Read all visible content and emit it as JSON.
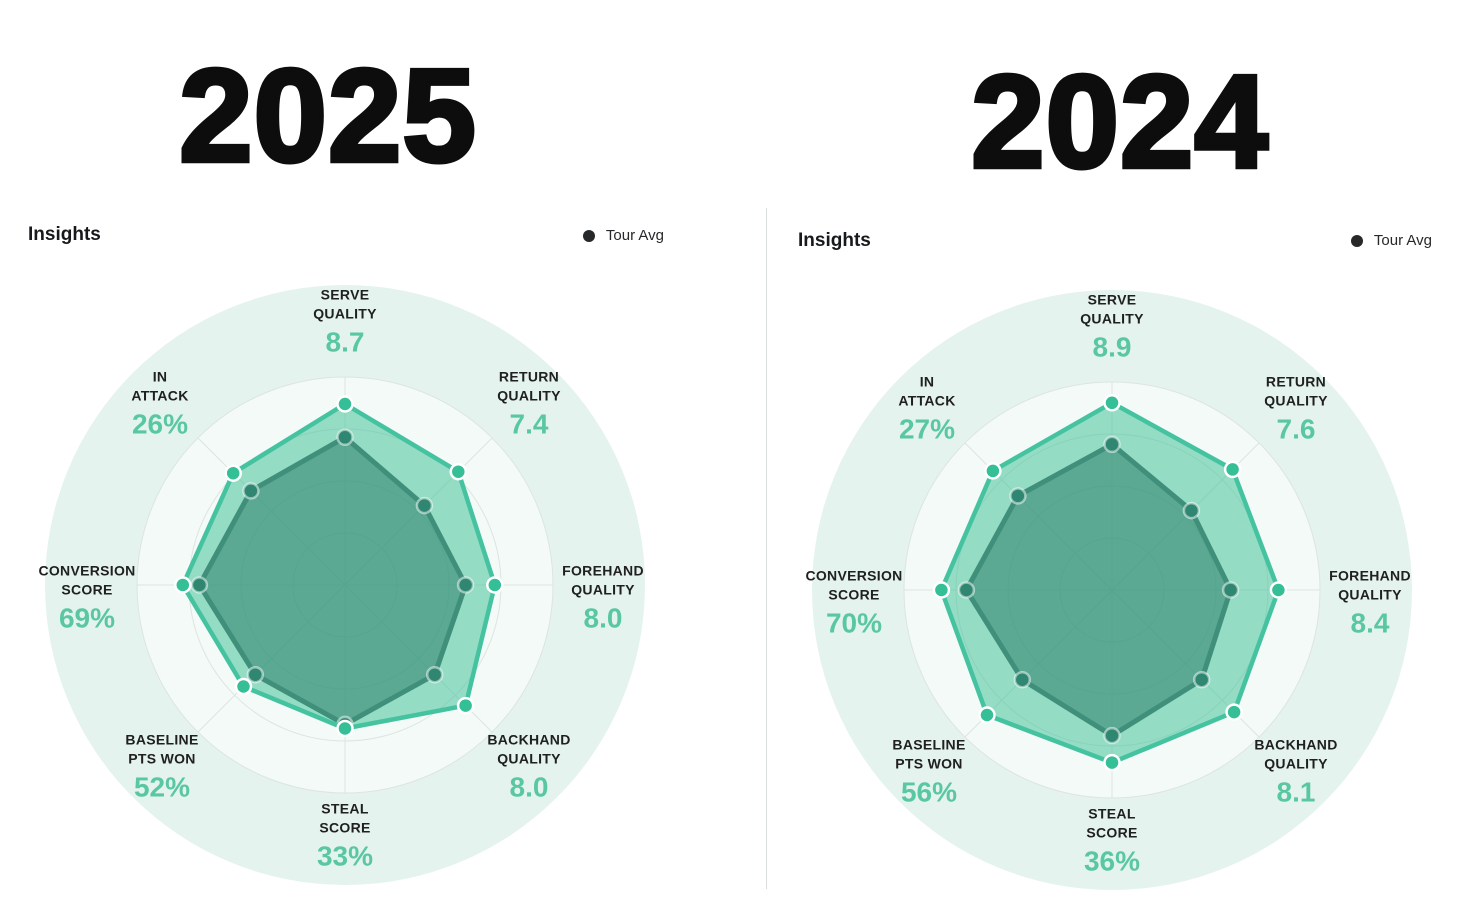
{
  "colors": {
    "halo": "#e4f3ee",
    "plot_bg": "#f3faf7",
    "grid": "#dde4e2",
    "main_fill": "rgba(70,195,155,0.55)",
    "main_stroke": "#45c3a0",
    "main_dot": "#35bf97",
    "tour_fill": "rgba(44,128,106,0.55)",
    "tour_stroke": "#3f8f7a",
    "tour_dot": "#2f8671",
    "value_text": "#5ac7a3",
    "label_text": "#202020",
    "legend_dot": "#26282a",
    "title_text": "#0d0d0d"
  },
  "panels": [
    {
      "title": "2025",
      "insights_label": "Insights",
      "legend_label": "Tour Avg",
      "axes": [
        {
          "label": "SERVE\nQUALITY",
          "value": "8.7"
        },
        {
          "label": "RETURN\nQUALITY",
          "value": "7.4"
        },
        {
          "label": "FOREHAND\nQUALITY",
          "value": "8.0"
        },
        {
          "label": "BACKHAND\nQUALITY",
          "value": "8.0"
        },
        {
          "label": "STEAL\nSCORE",
          "value": "33%"
        },
        {
          "label": "BASELINE\nPTS WON",
          "value": "52%"
        },
        {
          "label": "CONVERSION\nSCORE",
          "value": "69%"
        },
        {
          "label": "IN\nATTACK",
          "value": "26%"
        }
      ]
    },
    {
      "title": "2024",
      "insights_label": "Insights",
      "legend_label": "Tour Avg",
      "axes": [
        {
          "label": "SERVE\nQUALITY",
          "value": "8.9"
        },
        {
          "label": "RETURN\nQUALITY",
          "value": "7.6"
        },
        {
          "label": "FOREHAND\nQUALITY",
          "value": "8.4"
        },
        {
          "label": "BACKHAND\nQUALITY",
          "value": "8.1"
        },
        {
          "label": "STEAL\nSCORE",
          "value": "36%"
        },
        {
          "label": "BASELINE\nPTS WON",
          "value": "56%"
        },
        {
          "label": "CONVERSION\nSCORE",
          "value": "70%"
        },
        {
          "label": "IN\nATTACK",
          "value": "27%"
        }
      ]
    }
  ],
  "chart_data": [
    {
      "type": "radar",
      "title": "2025",
      "subtitle": "Insights",
      "legend": [
        "Tour Avg"
      ],
      "legend_position": "top-right",
      "axes": [
        "SERVE QUALITY",
        "RETURN QUALITY",
        "FOREHAND QUALITY",
        "BACKHAND QUALITY",
        "STEAL SCORE",
        "BASELINE PTS WON",
        "CONVERSION SCORE",
        "IN ATTACK"
      ],
      "displayed_values": [
        "8.7",
        "7.4",
        "8.0",
        "8.0",
        "33%",
        "52%",
        "69%",
        "26%"
      ],
      "radial_axis": {
        "min": 0,
        "max": 1,
        "rings": 4,
        "grid": true
      },
      "series": [
        {
          "name": "main",
          "radius_fraction": [
            0.87,
            0.77,
            0.72,
            0.82,
            0.69,
            0.69,
            0.78,
            0.76
          ]
        },
        {
          "name": "Tour Avg",
          "radius_fraction": [
            0.71,
            0.54,
            0.58,
            0.61,
            0.67,
            0.61,
            0.7,
            0.64
          ]
        }
      ]
    },
    {
      "type": "radar",
      "title": "2024",
      "subtitle": "Insights",
      "legend": [
        "Tour Avg"
      ],
      "legend_position": "top-right",
      "axes": [
        "SERVE QUALITY",
        "RETURN QUALITY",
        "FOREHAND QUALITY",
        "BACKHAND QUALITY",
        "STEAL SCORE",
        "BASELINE PTS WON",
        "CONVERSION SCORE",
        "IN ATTACK"
      ],
      "displayed_values": [
        "8.9",
        "7.6",
        "8.4",
        "8.1",
        "36%",
        "56%",
        "70%",
        "27%"
      ],
      "radial_axis": {
        "min": 0,
        "max": 1,
        "rings": 4,
        "grid": true
      },
      "series": [
        {
          "name": "main",
          "radius_fraction": [
            0.9,
            0.82,
            0.8,
            0.83,
            0.83,
            0.85,
            0.82,
            0.81
          ]
        },
        {
          "name": "Tour Avg",
          "radius_fraction": [
            0.7,
            0.54,
            0.57,
            0.61,
            0.7,
            0.61,
            0.7,
            0.64
          ]
        }
      ]
    }
  ]
}
